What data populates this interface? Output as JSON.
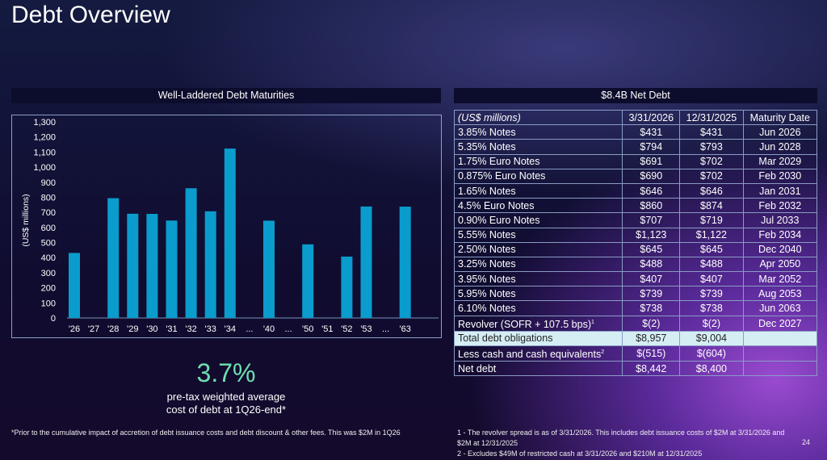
{
  "title": "Debt Overview",
  "left_header": "Well-Laddered Debt Maturities",
  "right_header": "$8.4B Net Debt",
  "chart_data": {
    "type": "bar",
    "ylabel": "(US$ millions)",
    "ylim": [
      0,
      1300
    ],
    "yticks": [
      0,
      100,
      200,
      300,
      400,
      500,
      600,
      700,
      800,
      900,
      1000,
      1100,
      1200,
      1300
    ],
    "categories": [
      "'26",
      "'27",
      "'28",
      "'29",
      "'30",
      "'31",
      "'32",
      "'33",
      "'34",
      "...",
      "'40",
      "...",
      "'50",
      "'51",
      "'52",
      "'53",
      "...",
      "'63"
    ],
    "values": [
      431,
      0,
      794,
      691,
      690,
      646,
      860,
      707,
      1123,
      null,
      645,
      null,
      488,
      0,
      407,
      739,
      null,
      738
    ],
    "bar_color": "#0a9ccc",
    "grid": false
  },
  "table": {
    "headers": [
      "(US$ millions)",
      "3/31/2026",
      "12/31/2025",
      "Maturity Date"
    ],
    "rows": [
      [
        "3.85% Notes",
        "$431",
        "$431",
        "Jun 2026"
      ],
      [
        "5.35% Notes",
        "$794",
        "$793",
        "Jun 2028"
      ],
      [
        "1.75% Euro Notes",
        "$691",
        "$702",
        "Mar 2029"
      ],
      [
        "0.875% Euro Notes",
        "$690",
        "$702",
        "Feb 2030"
      ],
      [
        "1.65% Notes",
        "$646",
        "$646",
        "Jan 2031"
      ],
      [
        "4.5% Euro Notes",
        "$860",
        "$874",
        "Feb 2032"
      ],
      [
        "0.90% Euro Notes",
        "$707",
        "$719",
        "Jul 2033"
      ],
      [
        "5.55% Notes",
        "$1,123",
        "$1,122",
        "Feb 2034"
      ],
      [
        "2.50% Notes",
        "$645",
        "$645",
        "Dec 2040"
      ],
      [
        "3.25% Notes",
        "$488",
        "$488",
        "Apr 2050"
      ],
      [
        "3.95% Notes",
        "$407",
        "$407",
        "Mar 2052"
      ],
      [
        "5.95% Notes",
        "$739",
        "$739",
        "Aug 2053"
      ],
      [
        "6.10% Notes",
        "$738",
        "$738",
        "Jun 2063"
      ],
      [
        "Revolver (SOFR + 107.5 bps)",
        "$(2)",
        "$(2)",
        "Dec 2027"
      ]
    ],
    "revolver_sup": "1",
    "total": [
      "Total debt obligations",
      "$8,957",
      "$9,004"
    ],
    "cash": [
      "Less cash and cash equivalents",
      "$(515)",
      "$(604)"
    ],
    "cash_sup": "2",
    "net": [
      "Net debt",
      "$8,442",
      "$8,400"
    ]
  },
  "rate": "3.7%",
  "rate_label_1": "pre-tax weighted average",
  "rate_label_2": "cost of debt at 1Q26-end*",
  "footnote_left": "*Prior to the cumulative impact of accretion of debt issuance costs and debt discount & other fees. This was $2M in 1Q26",
  "footnote_1": "1 - The revolver spread is as of 3/31/2026. This includes debt issuance costs of $2M at 3/31/2026 and $2M at 12/31/2025",
  "footnote_2": "2 - Excludes $49M of restricted cash at 3/31/2026 and $210M at 12/31/2025",
  "page_number": "24"
}
